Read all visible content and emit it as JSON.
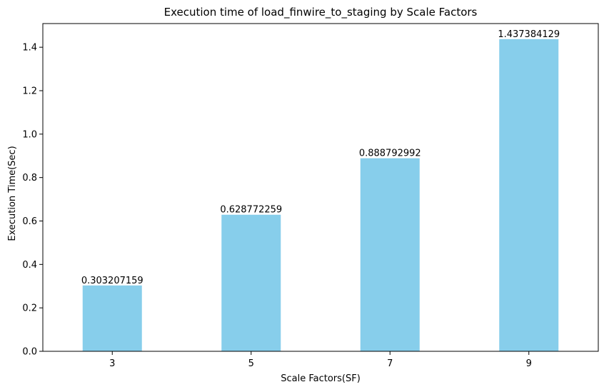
{
  "chart_data": {
    "type": "bar",
    "title": "Execution time of load_finwire_to_staging by Scale Factors",
    "xlabel": "Scale Factors(SF)",
    "ylabel": "Execution Time(Sec)",
    "categories": [
      "3",
      "5",
      "7",
      "9"
    ],
    "values": [
      0.303207159,
      0.628772259,
      0.888792992,
      1.437384129
    ],
    "value_labels": [
      "0.303207159",
      "0.628772259",
      "0.888792992",
      "1.437384129"
    ],
    "ylim": [
      0,
      1.509
    ],
    "yticks": [
      0.0,
      0.2,
      0.4,
      0.6,
      0.8,
      1.0,
      1.2,
      1.4
    ],
    "ytick_labels": [
      "0.0",
      "0.2",
      "0.4",
      "0.6",
      "0.8",
      "1.0",
      "1.2",
      "1.4"
    ],
    "grid": false,
    "bar_color": "#87CEEB"
  }
}
